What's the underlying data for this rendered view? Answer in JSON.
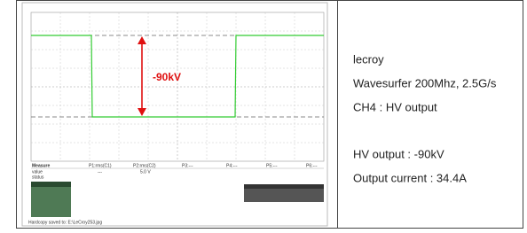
{
  "scope": {
    "annotation": "-90kV",
    "measure_header": [
      "Measure",
      "P1:rms(C1)",
      "P2:rms(C2)",
      "P3:---",
      "P4:---",
      "P5:---",
      "P6:---"
    ],
    "value_row": [
      "value",
      "---",
      "5.0 V"
    ],
    "status_label": "status",
    "hardcopy": "Hardcopy saved to: E:\\LeCroy253.jpg"
  },
  "info": {
    "lines": [
      "lecroy",
      "Wavesurfer 200Mhz, 2.5G/s",
      "CH4 : HV output",
      "HV output : -90kV",
      "Output current : 34.4A"
    ]
  }
}
